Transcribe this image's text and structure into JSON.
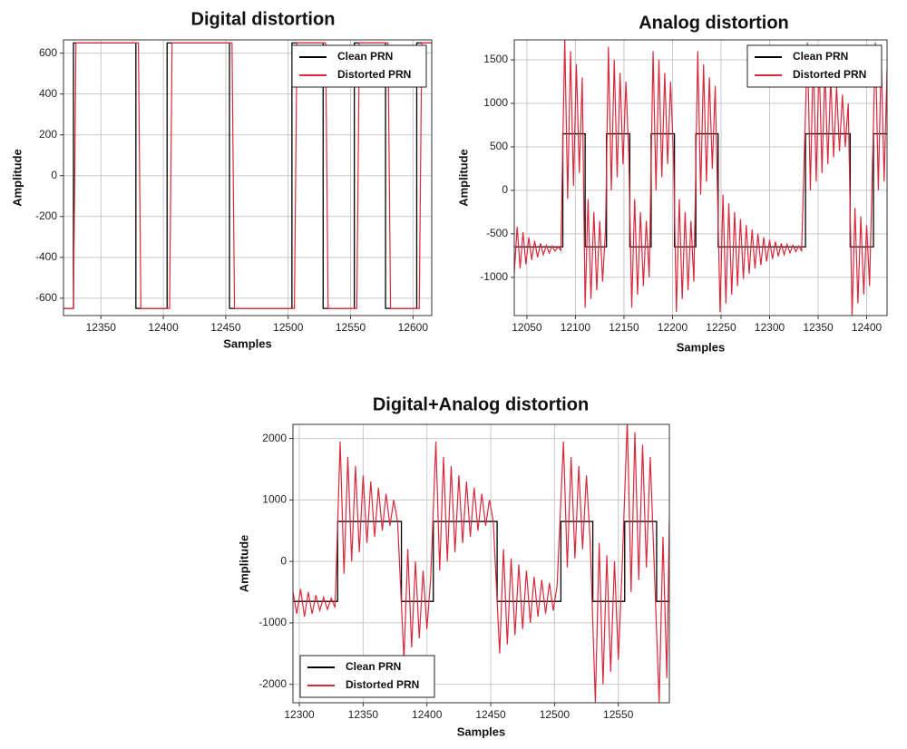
{
  "chart_data": [
    {
      "type": "line",
      "title": "Digital distortion",
      "x_label": "Samples",
      "y_label": "Amplitude",
      "xlim": [
        12320,
        12615
      ],
      "xticks": [
        12350,
        12400,
        12450,
        12500,
        12550,
        12600
      ],
      "ylim": [
        -685,
        665
      ],
      "yticks": [
        -600,
        -400,
        -200,
        0,
        200,
        400,
        600
      ],
      "grid": true,
      "legend": "upper-right",
      "series": [
        {
          "name": "Clean PRN",
          "color": "#000000",
          "x": [
            12320,
            12328,
            12328,
            12378,
            12378,
            12403,
            12403,
            12453,
            12453,
            12503,
            12503,
            12528,
            12528,
            12553,
            12553,
            12578,
            12578,
            12603,
            12603,
            12615
          ],
          "values": [
            -650,
            -650,
            650,
            650,
            -650,
            -650,
            650,
            650,
            -650,
            -650,
            650,
            650,
            -650,
            -650,
            650,
            650,
            -650,
            -650,
            650,
            650
          ]
        },
        {
          "name": "Distorted PRN",
          "color": "#e0283c",
          "x": [
            12320,
            12328,
            12330,
            12380,
            12382,
            12405,
            12407,
            12455,
            12457,
            12505,
            12507,
            12530,
            12532,
            12555,
            12557,
            12580,
            12582,
            12605,
            12607,
            12615
          ],
          "values": [
            -650,
            -650,
            650,
            650,
            -650,
            -650,
            650,
            650,
            -650,
            -650,
            650,
            650,
            -650,
            -650,
            650,
            650,
            -650,
            -650,
            650,
            650
          ]
        }
      ]
    },
    {
      "type": "line",
      "title": "Analog distortion",
      "x_label": "Samples",
      "y_label": "Amplitude",
      "xlim": [
        12037,
        12421
      ],
      "xticks": [
        12050,
        12100,
        12150,
        12200,
        12250,
        12300,
        12350,
        12400
      ],
      "ylim": [
        -1440,
        1730
      ],
      "yticks": [
        -1000,
        -500,
        0,
        500,
        1000,
        1500
      ],
      "grid": true,
      "legend": "upper-right",
      "series": [
        {
          "name": "Clean PRN",
          "color": "#000000",
          "x": [
            12037,
            12087,
            12087,
            12110,
            12110,
            12132,
            12132,
            12156,
            12156,
            12178,
            12178,
            12202,
            12202,
            12224,
            12224,
            12247,
            12247,
            12337,
            12337,
            12383,
            12383,
            12407,
            12407,
            12421
          ],
          "values": [
            -650,
            -650,
            650,
            650,
            -650,
            -650,
            650,
            650,
            -650,
            -650,
            650,
            650,
            -650,
            -650,
            650,
            650,
            -650,
            -650,
            650,
            650,
            -650,
            -650,
            650,
            650
          ]
        },
        {
          "name": "Distorted PRN",
          "color": "#d8283c",
          "x": [
            12037,
            12040,
            12043,
            12046,
            12049,
            12052,
            12055,
            12058,
            12061,
            12064,
            12067,
            12070,
            12073,
            12076,
            12079,
            12082,
            12085,
            12089,
            12092,
            12095,
            12098,
            12101,
            12104,
            12107,
            12110,
            12113,
            12116,
            12119,
            12122,
            12125,
            12128,
            12131,
            12134,
            12137,
            12140,
            12143,
            12146,
            12149,
            12152,
            12155,
            12158,
            12161,
            12164,
            12167,
            12170,
            12173,
            12176,
            12180,
            12183,
            12186,
            12189,
            12192,
            12195,
            12198,
            12201,
            12204,
            12207,
            12210,
            12213,
            12216,
            12219,
            12222,
            12226,
            12229,
            12232,
            12235,
            12238,
            12241,
            12244,
            12249,
            12252,
            12255,
            12258,
            12261,
            12264,
            12267,
            12270,
            12273,
            12276,
            12279,
            12282,
            12285,
            12288,
            12291,
            12294,
            12297,
            12300,
            12303,
            12306,
            12309,
            12312,
            12315,
            12318,
            12321,
            12324,
            12327,
            12330,
            12333,
            12339,
            12342,
            12345,
            12348,
            12351,
            12354,
            12357,
            12360,
            12363,
            12366,
            12369,
            12372,
            12375,
            12378,
            12381,
            12385,
            12388,
            12391,
            12394,
            12397,
            12400,
            12403,
            12409,
            12412,
            12415,
            12418,
            12421
          ],
          "values": [
            -950,
            -420,
            -900,
            -480,
            -850,
            -540,
            -800,
            -580,
            -770,
            -610,
            -740,
            -630,
            -720,
            -640,
            -700,
            -650,
            -690,
            1750,
            -100,
            1600,
            50,
            1450,
            200,
            1300,
            -1350,
            -100,
            -1250,
            -250,
            -1150,
            -350,
            -1050,
            -450,
            1650,
            0,
            1500,
            150,
            1350,
            300,
            1250,
            400,
            -1350,
            -100,
            -1200,
            -250,
            -1100,
            -350,
            -1000,
            1600,
            0,
            1500,
            150,
            1350,
            300,
            1250,
            400,
            -1400,
            -100,
            -1250,
            -250,
            -1150,
            -350,
            -1050,
            1600,
            -50,
            1450,
            100,
            1300,
            250,
            1200,
            -1400,
            -50,
            -1300,
            -150,
            -1200,
            -250,
            -1100,
            -330,
            -1020,
            -400,
            -960,
            -450,
            -900,
            -500,
            -860,
            -540,
            -820,
            -570,
            -790,
            -590,
            -760,
            -610,
            -740,
            -620,
            -720,
            -630,
            -705,
            -640,
            -695,
            1700,
            0,
            1600,
            100,
            1500,
            200,
            1400,
            300,
            1300,
            380,
            1200,
            450,
            1100,
            500,
            1000,
            -1450,
            -200,
            -1300,
            -300,
            -1200,
            -400,
            -1100,
            1700,
            0,
            1550,
            100,
            1400
          ]
        }
      ]
    },
    {
      "type": "line",
      "title": "Digital+Analog distortion",
      "x_label": "Samples",
      "y_label": "Amplitude",
      "xlim": [
        12295,
        12590
      ],
      "xticks": [
        12300,
        12350,
        12400,
        12450,
        12500,
        12550
      ],
      "ylim": [
        -2300,
        2230
      ],
      "yticks": [
        -2000,
        -1000,
        0,
        1000,
        2000
      ],
      "grid": true,
      "legend": "lower-left",
      "series": [
        {
          "name": "Clean PRN",
          "color": "#000000",
          "x": [
            12295,
            12330,
            12330,
            12380,
            12380,
            12405,
            12405,
            12455,
            12455,
            12505,
            12505,
            12530,
            12530,
            12555,
            12555,
            12580,
            12580,
            12590
          ],
          "values": [
            -650,
            -650,
            650,
            650,
            -650,
            -650,
            650,
            650,
            -650,
            -650,
            650,
            650,
            -650,
            -650,
            650,
            650,
            -650,
            -650
          ]
        },
        {
          "name": "Distorted PRN",
          "color": "#d8283c",
          "x": [
            12295,
            12298,
            12301,
            12304,
            12307,
            12310,
            12313,
            12316,
            12319,
            12322,
            12325,
            12328,
            12332,
            12335,
            12338,
            12341,
            12344,
            12347,
            12350,
            12353,
            12356,
            12359,
            12362,
            12365,
            12368,
            12371,
            12374,
            12377,
            12382,
            12385,
            12388,
            12391,
            12394,
            12397,
            12400,
            12403,
            12407,
            12410,
            12413,
            12416,
            12419,
            12422,
            12425,
            12428,
            12431,
            12434,
            12437,
            12440,
            12443,
            12446,
            12449,
            12452,
            12457,
            12460,
            12463,
            12466,
            12469,
            12472,
            12475,
            12478,
            12481,
            12484,
            12487,
            12490,
            12493,
            12496,
            12499,
            12502,
            12507,
            12510,
            12513,
            12516,
            12519,
            12522,
            12525,
            12528,
            12532,
            12535,
            12538,
            12541,
            12544,
            12547,
            12550,
            12553,
            12557,
            12560,
            12563,
            12566,
            12569,
            12572,
            12575,
            12578,
            12582,
            12585,
            12588,
            12590
          ],
          "values": [
            -500,
            -850,
            -450,
            -900,
            -500,
            -850,
            -550,
            -800,
            -580,
            -780,
            -600,
            -750,
            1950,
            -200,
            1700,
            0,
            1550,
            150,
            1400,
            300,
            1300,
            400,
            1200,
            500,
            1100,
            580,
            1000,
            650,
            -1600,
            200,
            -1400,
            0,
            -1250,
            -150,
            -1100,
            -250,
            1950,
            -150,
            1700,
            0,
            1550,
            150,
            1400,
            300,
            1300,
            400,
            1200,
            500,
            1100,
            580,
            1000,
            650,
            -1500,
            200,
            -1350,
            50,
            -1200,
            -50,
            -1100,
            -150,
            -1000,
            -250,
            -900,
            -300,
            -850,
            -350,
            -800,
            -400,
            1950,
            -100,
            1700,
            50,
            1550,
            200,
            1400,
            300,
            -2300,
            300,
            -2000,
            100,
            -1800,
            0,
            -1600,
            -100,
            2300,
            -500,
            2100,
            -300,
            1900,
            -100,
            1700,
            0,
            -2300,
            400,
            -1900,
            700
          ]
        }
      ]
    }
  ]
}
